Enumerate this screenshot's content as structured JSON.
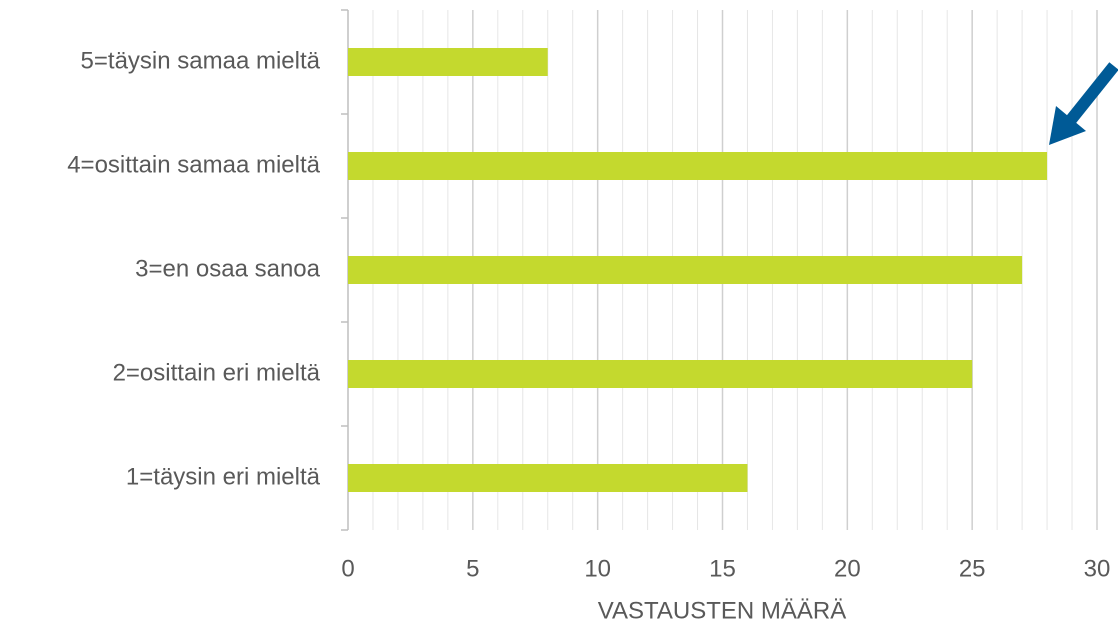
{
  "chart_data": {
    "type": "bar",
    "orientation": "horizontal",
    "categories": [
      "5=täysin samaa mieltä",
      "4=osittain samaa mieltä",
      "3=en osaa sanoa",
      "2=osittain eri mieltä",
      "1=täysin eri mieltä"
    ],
    "values": [
      8,
      28,
      27,
      25,
      16
    ],
    "color": "#c4d92e",
    "x_label": "VASTAUSTEN MÄÄRÄ",
    "xlim": [
      0,
      30
    ],
    "xticks": [
      0,
      5,
      10,
      15,
      20,
      25,
      30
    ],
    "minor_xticks": [
      1,
      2,
      3,
      4,
      6,
      7,
      8,
      9,
      11,
      12,
      13,
      14,
      16,
      17,
      18,
      19,
      21,
      22,
      23,
      24,
      26,
      27,
      28,
      29
    ],
    "grid": true
  }
}
